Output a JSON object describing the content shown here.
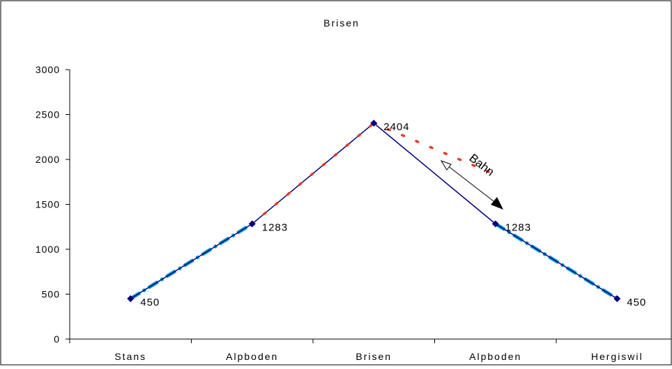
{
  "chart_data": {
    "type": "line",
    "title": "Brisen",
    "categories": [
      "Stans",
      "Alpboden",
      "Brisen",
      "Alpboden",
      "Hergiswil"
    ],
    "ylim": [
      0,
      3000
    ],
    "yticks": [
      0,
      500,
      1000,
      1500,
      2000,
      2500,
      3000
    ],
    "grid": false,
    "series": [
      {
        "name": "",
        "values": [
          450,
          1283,
          2404,
          1283,
          450
        ],
        "color": "#000080",
        "style": "solid-line-diamond-markers"
      },
      {
        "name": "",
        "values": [
          450,
          1283,
          null,
          1283,
          450
        ],
        "color": "#0099cc",
        "style": "thick-dash-dot"
      },
      {
        "name": "",
        "values": [
          null,
          1283,
          2404,
          1830,
          null
        ],
        "color": "#e8382a",
        "style": "dotted"
      }
    ],
    "data_labels": [
      "450",
      "1283",
      "2404",
      "1283",
      "450"
    ],
    "annotation": {
      "text": "Bahn",
      "color": "#000000"
    }
  }
}
